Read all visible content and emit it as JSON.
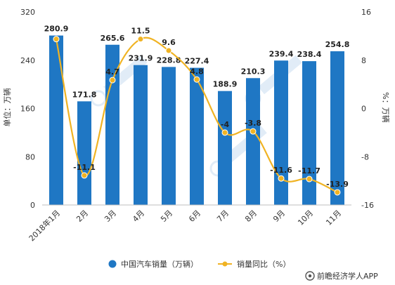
{
  "chart_data": {
    "type": "bar",
    "categories": [
      "2018年1月",
      "2月",
      "3月",
      "4月",
      "5月",
      "6月",
      "7月",
      "8月",
      "9月",
      "10月",
      "11月"
    ],
    "series": [
      {
        "name": "中国汽车销量（万辆）",
        "type": "bar",
        "axis": "left",
        "color": "#1f77c4",
        "values": [
          280.9,
          171.8,
          265.6,
          231.9,
          228.8,
          227.4,
          188.9,
          210.3,
          239.4,
          238.4,
          254.8
        ],
        "labels": [
          "280.9",
          "171.8",
          "265.6",
          "231.9",
          "228.8",
          "227.4",
          "188.9",
          "210.3",
          "239.4",
          "238.4",
          "254.8"
        ]
      },
      {
        "name": "销量同比（%）",
        "type": "line",
        "axis": "right",
        "color": "#f0b323",
        "values": [
          11.5,
          -11.1,
          4.7,
          11.5,
          9.6,
          4.8,
          -4,
          -3.8,
          -11.6,
          -11.7,
          -13.9
        ],
        "labels": [
          "",
          "-11.1",
          "4.7",
          "11.5",
          "9.6",
          "4.8",
          "-4",
          "-3.8",
          "-11.6",
          "-11.7",
          "-13.9"
        ]
      }
    ],
    "ylabel_left": "单位：万辆",
    "ylabel_right": "%：万辆",
    "ylim_left": [
      0,
      320
    ],
    "yticks_left": [
      0,
      80,
      160,
      240,
      320
    ],
    "ylim_right": [
      -16,
      16
    ],
    "yticks_right": [
      -16,
      -8,
      0,
      8,
      16
    ],
    "grid": false,
    "legend_position": "bottom"
  },
  "footer": {
    "source": "前瞻经济学人APP"
  }
}
